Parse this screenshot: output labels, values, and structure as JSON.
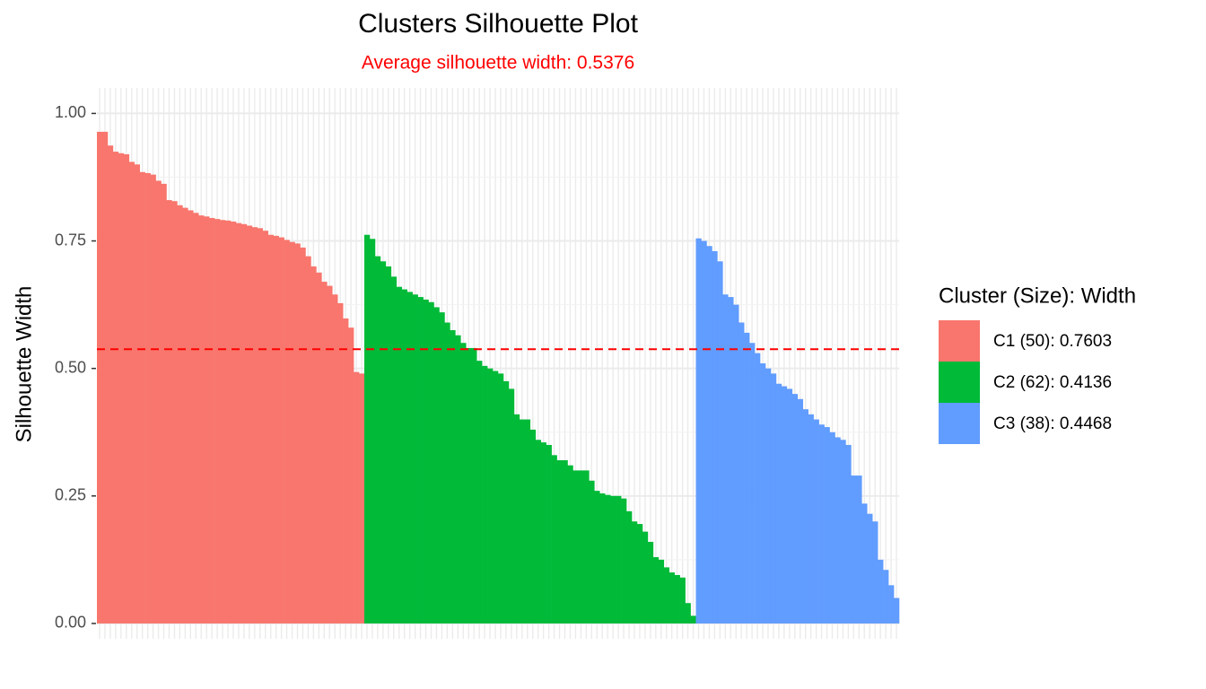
{
  "chart_data": {
    "type": "bar",
    "title": "Clusters Silhouette Plot",
    "subtitle": "Average silhouette width: 0.5376",
    "y_label": "Silhouette Width",
    "legend_title": "Cluster (Size): Width",
    "average_line": 0.5376,
    "average_line_color": "#ff0000",
    "ylim": [
      -0.03,
      1.05
    ],
    "yticks": [
      {
        "value": 0,
        "label": "0.00"
      },
      {
        "value": 0.25,
        "label": "0.25"
      },
      {
        "value": 0.5,
        "label": "0.50"
      },
      {
        "value": 0.75,
        "label": "0.75"
      },
      {
        "value": 1,
        "label": "1.00"
      }
    ],
    "grid": true,
    "series": [
      {
        "name": "C1 (50): 0.7603",
        "color": "#f8766d",
        "values": [
          0.964,
          0.964,
          0.937,
          0.925,
          0.922,
          0.92,
          0.905,
          0.9,
          0.885,
          0.883,
          0.88,
          0.868,
          0.862,
          0.83,
          0.828,
          0.82,
          0.815,
          0.81,
          0.805,
          0.8,
          0.798,
          0.795,
          0.793,
          0.791,
          0.79,
          0.788,
          0.785,
          0.783,
          0.78,
          0.777,
          0.775,
          0.77,
          0.762,
          0.76,
          0.757,
          0.752,
          0.748,
          0.745,
          0.737,
          0.72,
          0.7,
          0.688,
          0.67,
          0.662,
          0.645,
          0.628,
          0.598,
          0.58,
          0.493,
          0.49
        ]
      },
      {
        "name": "C2 (62): 0.4136",
        "color": "#00ba38",
        "values": [
          0.762,
          0.754,
          0.72,
          0.71,
          0.7,
          0.68,
          0.66,
          0.655,
          0.65,
          0.645,
          0.64,
          0.635,
          0.63,
          0.62,
          0.61,
          0.59,
          0.575,
          0.565,
          0.55,
          0.54,
          0.54,
          0.515,
          0.505,
          0.5,
          0.495,
          0.49,
          0.475,
          0.46,
          0.41,
          0.4,
          0.4,
          0.38,
          0.36,
          0.355,
          0.35,
          0.33,
          0.32,
          0.32,
          0.31,
          0.3,
          0.3,
          0.3,
          0.28,
          0.26,
          0.255,
          0.252,
          0.25,
          0.25,
          0.245,
          0.22,
          0.2,
          0.195,
          0.18,
          0.16,
          0.13,
          0.125,
          0.11,
          0.1,
          0.095,
          0.09,
          0.04,
          0.015
        ]
      },
      {
        "name": "C3 (38): 0.4468",
        "color": "#619cff",
        "values": [
          0.755,
          0.75,
          0.74,
          0.73,
          0.71,
          0.645,
          0.64,
          0.625,
          0.59,
          0.57,
          0.55,
          0.53,
          0.51,
          0.5,
          0.49,
          0.47,
          0.465,
          0.46,
          0.45,
          0.44,
          0.42,
          0.41,
          0.4,
          0.39,
          0.385,
          0.375,
          0.365,
          0.36,
          0.35,
          0.29,
          0.29,
          0.235,
          0.215,
          0.2,
          0.125,
          0.105,
          0.075,
          0.05
        ]
      }
    ]
  }
}
